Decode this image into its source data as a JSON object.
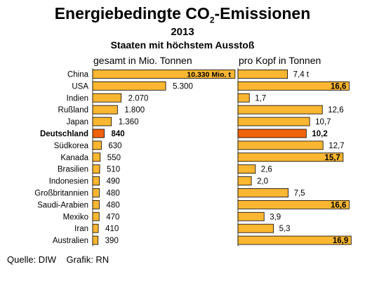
{
  "chart_data": {
    "type": "bar",
    "title": "Energiebedingte CO2-Emissionen",
    "title_main": "Energiebedingte CO",
    "title_sub": "2",
    "title_tail": "-Emissionen",
    "year": "2013",
    "subtitle": "Staaten mit höchstem Ausstoß",
    "categories": [
      "China",
      "USA",
      "Indien",
      "Rußland",
      "Japan",
      "Deutschland",
      "Südkorea",
      "Kanada",
      "Brasilien",
      "Indonesien",
      "Großbritannien",
      "Saudi-Arabien",
      "Mexiko",
      "Iran",
      "Australien"
    ],
    "highlight": "Deutschland",
    "series": [
      {
        "name": "gesamt in Mio. Tonnen",
        "values": [
          10330,
          5300,
          2070,
          1800,
          1360,
          840,
          630,
          550,
          510,
          490,
          480,
          480,
          470,
          410,
          390
        ],
        "labels": [
          "10.330 Mio. t",
          "5.300",
          "2.070",
          "1.800",
          "1.360",
          "840",
          "630",
          "550",
          "510",
          "490",
          "480",
          "480",
          "470",
          "410",
          "390"
        ],
        "xlim": [
          0,
          11000
        ]
      },
      {
        "name": "pro Kopf in Tonnen",
        "values": [
          7.4,
          16.6,
          1.7,
          12.6,
          10.7,
          10.2,
          12.7,
          15.7,
          2.6,
          2.0,
          7.5,
          16.6,
          3.9,
          5.3,
          16.9
        ],
        "labels": [
          "7,4 t",
          "16,6",
          "1,7",
          "12,6",
          "10,7",
          "10,2",
          "12,7",
          "15,7",
          "2,6",
          "2,0",
          "7,5",
          "16,6",
          "3,9",
          "5,3",
          "16,9"
        ],
        "xlim": [
          0,
          17.5
        ]
      }
    ],
    "colors": {
      "bar": "#FBB731",
      "highlight": "#F0620D",
      "stroke": "#000000"
    },
    "grid": false
  },
  "source": "Quelle: DIW    Grafik: RN"
}
